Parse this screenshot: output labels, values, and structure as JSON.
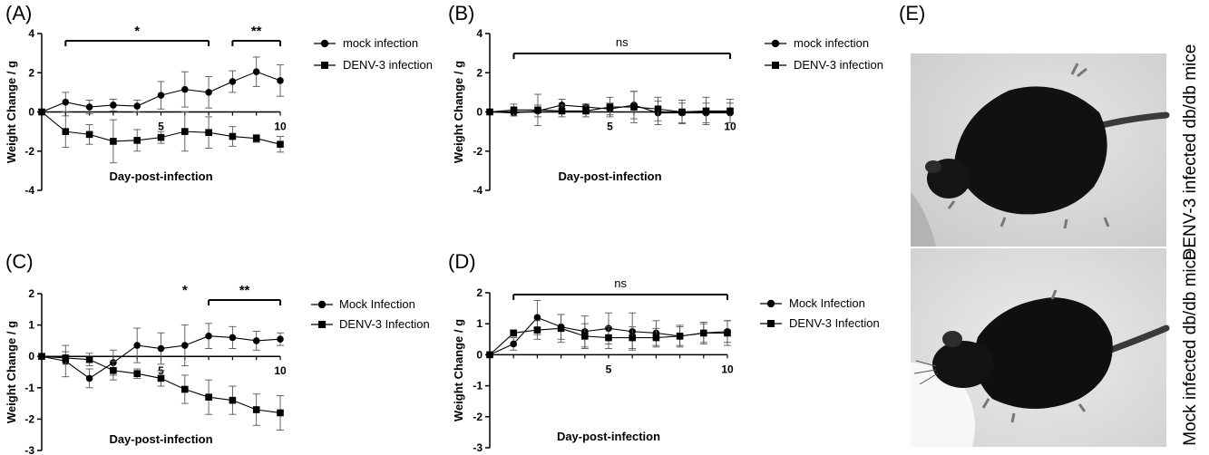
{
  "panels": [
    {
      "letter": "(A)",
      "legend": [
        "mock infection",
        "DENV-3 infection"
      ],
      "annotations": [
        {
          "text": "*",
          "x_start": 1,
          "x_end": 7
        },
        {
          "text": "**",
          "x_start": 8,
          "x_end": 10
        }
      ]
    },
    {
      "letter": "(B)",
      "legend": [
        "mock infection",
        "DENV-3 infection"
      ],
      "annotations": [
        {
          "text": "ns",
          "x_start": 1,
          "x_end": 10
        }
      ]
    },
    {
      "letter": "(C)",
      "legend": [
        "Mock Infection",
        "DENV-3 Infection"
      ],
      "annotations": [
        {
          "text": "*",
          "x_start": 6,
          "x_end": 6
        },
        {
          "text": "**",
          "x_start": 7,
          "x_end": 10
        }
      ]
    },
    {
      "letter": "(D)",
      "legend": [
        "Mock Infection",
        "DENV-3 Infection"
      ],
      "annotations": [
        {
          "text": "ns",
          "x_start": 1,
          "x_end": 10
        }
      ]
    }
  ],
  "chart_data": [
    {
      "type": "line",
      "xlabel": "Day-post-infection",
      "ylabel": "Weight Change / g",
      "ylim": [
        -4,
        4
      ],
      "yticks": [
        -4,
        -2,
        0,
        2,
        4
      ],
      "xlim": [
        0,
        10
      ],
      "xticks": [
        5,
        10
      ],
      "series": [
        {
          "name": "mock infection",
          "marker": "circle",
          "x": [
            0,
            1,
            2,
            3,
            4,
            5,
            6,
            7,
            8,
            9,
            10
          ],
          "y": [
            0,
            0.5,
            0.25,
            0.35,
            0.3,
            0.85,
            1.15,
            1.0,
            1.55,
            2.05,
            1.6
          ],
          "err": [
            0,
            0.5,
            0.35,
            0.3,
            0.3,
            0.7,
            0.9,
            0.8,
            0.55,
            0.75,
            0.8
          ]
        },
        {
          "name": "DENV-3 infection",
          "marker": "square",
          "x": [
            0,
            1,
            2,
            3,
            4,
            5,
            6,
            7,
            8,
            9,
            10
          ],
          "y": [
            0,
            -1.0,
            -1.15,
            -1.5,
            -1.45,
            -1.3,
            -1.0,
            -1.05,
            -1.25,
            -1.35,
            -1.65
          ],
          "err": [
            0,
            0.8,
            0.5,
            1.1,
            0.55,
            0.3,
            1.0,
            0.8,
            0.5,
            0.2,
            0.4
          ]
        }
      ]
    },
    {
      "type": "line",
      "xlabel": "Day-post-infection",
      "ylabel": "Weight Change / g",
      "ylim": [
        -4,
        4
      ],
      "yticks": [
        -4,
        -2,
        0,
        2,
        4
      ],
      "xlim": [
        0,
        10
      ],
      "xticks": [
        5,
        10
      ],
      "series": [
        {
          "name": "mock infection",
          "marker": "circle",
          "x": [
            0,
            1,
            2,
            3,
            4,
            5,
            6,
            7,
            8,
            9,
            10
          ],
          "y": [
            0,
            -0.05,
            0.05,
            0.35,
            0.25,
            0.15,
            0.35,
            -0.05,
            -0.05,
            -0.05,
            -0.05
          ],
          "err": [
            0,
            0.15,
            0.3,
            0.3,
            0.15,
            0.3,
            0.7,
            0.6,
            0.5,
            0.5,
            0.5
          ]
        },
        {
          "name": "DENV-3 infection",
          "marker": "square",
          "x": [
            0,
            1,
            2,
            3,
            4,
            5,
            6,
            7,
            8,
            9,
            10
          ],
          "y": [
            0,
            0.1,
            0.1,
            0.05,
            0.05,
            0.25,
            0.25,
            0.15,
            0.0,
            0.05,
            0.05
          ],
          "err": [
            0,
            0.3,
            0.8,
            0.3,
            0.3,
            0.5,
            0.8,
            0.6,
            0.6,
            0.7,
            0.6
          ]
        }
      ]
    },
    {
      "type": "line",
      "xlabel": "Day-post-infection",
      "ylabel": "Weight Change / g",
      "ylim": [
        -3,
        2
      ],
      "yticks": [
        -3,
        -2,
        -1,
        0,
        1,
        2
      ],
      "xlim": [
        0,
        10
      ],
      "xticks": [
        5,
        10
      ],
      "series": [
        {
          "name": "Mock Infection",
          "marker": "circle",
          "x": [
            0,
            1,
            2,
            3,
            4,
            5,
            6,
            7,
            8,
            9,
            10
          ],
          "y": [
            0,
            -0.15,
            -0.7,
            -0.2,
            0.35,
            0.25,
            0.35,
            0.65,
            0.6,
            0.5,
            0.55
          ],
          "err": [
            0,
            0.5,
            0.3,
            0.4,
            0.55,
            0.5,
            0.65,
            0.4,
            0.35,
            0.3,
            0.2
          ]
        },
        {
          "name": "DENV-3 Infection",
          "marker": "square",
          "x": [
            0,
            1,
            2,
            3,
            4,
            5,
            6,
            7,
            8,
            9,
            10
          ],
          "y": [
            0,
            -0.05,
            -0.1,
            -0.45,
            -0.55,
            -0.7,
            -1.05,
            -1.3,
            -1.4,
            -1.7,
            -1.8
          ],
          "err": [
            0,
            0.2,
            0.2,
            0.3,
            0.15,
            0.25,
            0.45,
            0.55,
            0.45,
            0.5,
            0.55
          ]
        }
      ]
    },
    {
      "type": "line",
      "xlabel": "Day-post-infection",
      "ylabel": "Weight Change / g",
      "ylim": [
        -3,
        2
      ],
      "yticks": [
        -3,
        -2,
        -1,
        0,
        1,
        2
      ],
      "xlim": [
        0,
        10
      ],
      "xticks": [
        5,
        10
      ],
      "series": [
        {
          "name": "Mock Infection",
          "marker": "circle",
          "x": [
            0,
            1,
            2,
            3,
            4,
            5,
            6,
            7,
            8,
            9,
            10
          ],
          "y": [
            0,
            0.35,
            1.2,
            0.9,
            0.75,
            0.85,
            0.75,
            0.7,
            0.6,
            0.7,
            0.75
          ],
          "err": [
            0,
            0.2,
            0.55,
            0.4,
            0.5,
            0.5,
            0.6,
            0.4,
            0.35,
            0.3,
            0.35
          ]
        },
        {
          "name": "DENV-3 Infection",
          "marker": "square",
          "x": [
            0,
            1,
            2,
            3,
            4,
            5,
            6,
            7,
            8,
            9,
            10
          ],
          "y": [
            0,
            0.7,
            0.8,
            0.85,
            0.6,
            0.55,
            0.55,
            0.55,
            0.6,
            0.7,
            0.7
          ],
          "err": [
            0,
            0.1,
            0.3,
            0.45,
            0.4,
            0.35,
            0.35,
            0.3,
            0.3,
            0.35,
            0.4
          ]
        }
      ]
    }
  ],
  "photo_panel": {
    "letter": "(E)",
    "captions": [
      "DENV-3 infected db/db mice",
      "Mock infected db/db mice"
    ]
  }
}
